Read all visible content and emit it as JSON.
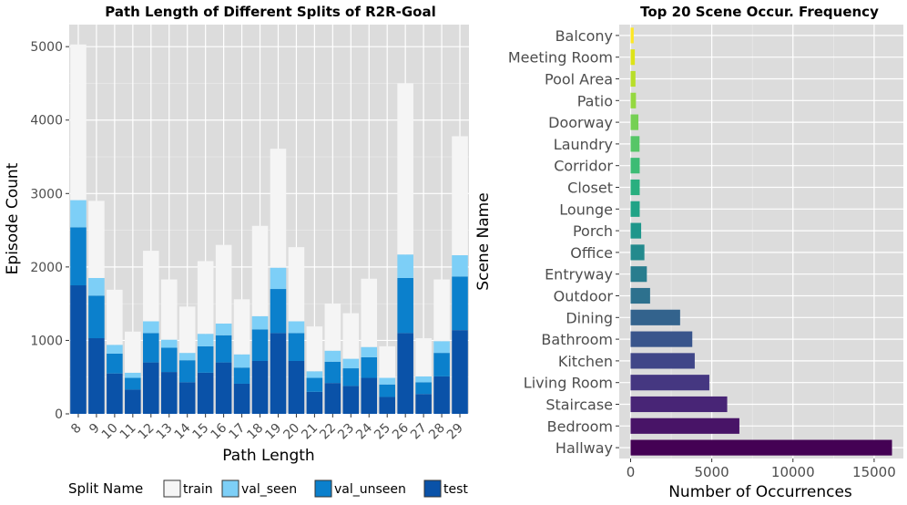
{
  "chart_data": [
    {
      "type": "bar",
      "stacked": true,
      "title": "Path Length of Different Splits of R2R-Goal",
      "xlabel": "Path Length",
      "ylabel": "Episode Count",
      "ylim": [
        0,
        5300
      ],
      "yticks": [
        0,
        1000,
        2000,
        3000,
        4000,
        5000
      ],
      "categories": [
        "8",
        "9",
        "10",
        "11",
        "12",
        "13",
        "14",
        "15",
        "16",
        "17",
        "18",
        "19",
        "20",
        "21",
        "22",
        "23",
        "24",
        "25",
        "26",
        "27",
        "28",
        "29"
      ],
      "legend_title": "Split Name",
      "legend_position": "bottom",
      "series": [
        {
          "name": "test",
          "color": "#0a52a8",
          "values": [
            1750,
            1030,
            550,
            330,
            700,
            570,
            430,
            560,
            700,
            410,
            720,
            1100,
            720,
            300,
            420,
            380,
            490,
            230,
            1100,
            270,
            510,
            1140
          ]
        },
        {
          "name": "val_unseen",
          "color": "#0b80cc",
          "values": [
            790,
            580,
            270,
            160,
            400,
            330,
            300,
            360,
            370,
            220,
            430,
            600,
            380,
            190,
            290,
            240,
            280,
            170,
            750,
            160,
            320,
            730
          ]
        },
        {
          "name": "val_seen",
          "color": "#7dcff7",
          "values": [
            370,
            240,
            120,
            70,
            160,
            110,
            100,
            170,
            160,
            180,
            180,
            290,
            160,
            90,
            150,
            130,
            140,
            90,
            320,
            80,
            160,
            290
          ]
        },
        {
          "name": "train",
          "color": "#f5f5f5",
          "values": [
            2120,
            1050,
            750,
            560,
            960,
            820,
            630,
            990,
            1070,
            750,
            1230,
            1620,
            1010,
            610,
            640,
            620,
            930,
            430,
            2330,
            520,
            840,
            1620
          ]
        }
      ]
    },
    {
      "type": "bar",
      "orientation": "horizontal",
      "title": "Top 20 Scene Occur. Frequency",
      "xlabel": "Number of Occurrences",
      "ylabel": "Scene Name",
      "xlim": [
        -700,
        16800
      ],
      "xticks": [
        0,
        5000,
        10000,
        15000
      ],
      "categories": [
        "Hallway",
        "Bedroom",
        "Staircase",
        "Living Room",
        "Kitchen",
        "Bathroom",
        "Dining",
        "Outdoor",
        "Entryway",
        "Office",
        "Porch",
        "Lounge",
        "Closet",
        "Corridor",
        "Laundry",
        "Doorway",
        "Patio",
        "Pool Area",
        "Meeting Room",
        "Balcony"
      ],
      "values": [
        16100,
        6700,
        5950,
        4850,
        3950,
        3800,
        3050,
        1200,
        1000,
        850,
        650,
        560,
        560,
        560,
        550,
        480,
        330,
        300,
        260,
        190
      ],
      "colors": [
        "#440154",
        "#481467",
        "#482576",
        "#453781",
        "#404688",
        "#39558c",
        "#33638d",
        "#2d718e",
        "#287d8e",
        "#238a8d",
        "#1f968b",
        "#20a386",
        "#29af7f",
        "#3dbc74",
        "#56c667",
        "#75d054",
        "#95d840",
        "#b8de29",
        "#dde318",
        "#fde725"
      ]
    }
  ]
}
